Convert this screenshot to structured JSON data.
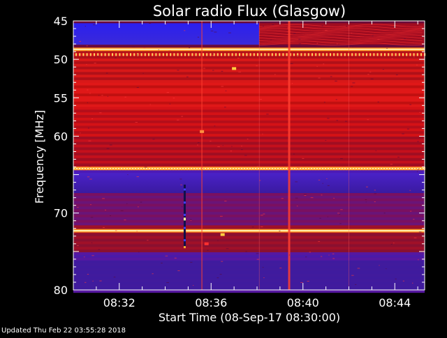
{
  "chart_data": {
    "type": "heatmap",
    "title": "Solar radio Flux (Glasgow)",
    "ylabel": "Frequency [MHz]",
    "xlabel": "Start Time (08-Sep-17 08:30:00)",
    "y_ticks": [
      "45",
      "50",
      "55",
      "60",
      "65",
      "70",
      "75",
      "80"
    ],
    "y_tick_labels_shown": [
      "45",
      "50",
      "55",
      "60",
      "",
      "70",
      "",
      "80"
    ],
    "ylim": [
      45,
      80
    ],
    "y_inverted": true,
    "x_ticks": [
      "08:32",
      "08:36",
      "08:40",
      "08:44"
    ],
    "x_tick_minutes": [
      2,
      6,
      10,
      14
    ],
    "xlim_minutes": [
      0,
      15.3
    ],
    "colormap": [
      "#1a0066",
      "#3030ff",
      "#7a0040",
      "#c00000",
      "#ff2020",
      "#ff9000",
      "#ffffc0"
    ],
    "features": [
      {
        "kind": "band",
        "freq_mhz": 48.7,
        "intensity": "high",
        "note": "bright horizontal line"
      },
      {
        "kind": "band",
        "freq_mhz": 64.2,
        "intensity": "high"
      },
      {
        "kind": "band",
        "freq_mhz": 72.3,
        "intensity": "high"
      },
      {
        "kind": "burst",
        "minute": 9.4,
        "intensity": "medium",
        "note": "vertical stripe"
      },
      {
        "kind": "burst",
        "minute": 5.6,
        "intensity": "low"
      }
    ]
  },
  "footer": {
    "updated": "Updated Thu Feb 22 03:55:28 2018"
  }
}
